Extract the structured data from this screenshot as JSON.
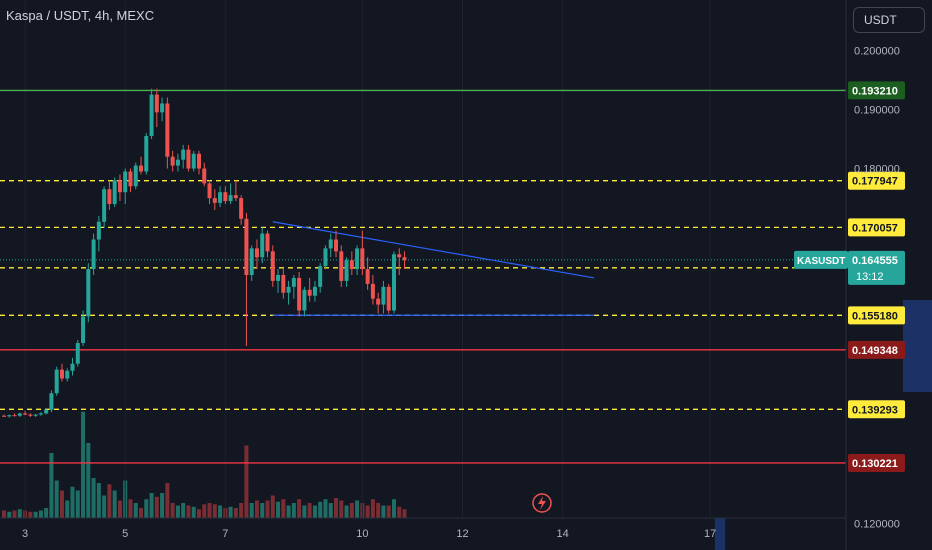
{
  "title": "Kaspa / USDT, 4h, MEXC",
  "currency_button": "USDT",
  "symbol_label": "KASUSDT",
  "current_price": "0.164555",
  "countdown": "13:12",
  "colors": {
    "background": "#131722",
    "up": "#26a69a",
    "down": "#ef5350",
    "green_line": "#4caf50",
    "red_line": "#f23645",
    "yellow": "#ffeb3b",
    "blue_line": "#2962ff"
  },
  "chart_data": {
    "type": "candlestick",
    "ylim": [
      0.1155,
      0.2085
    ],
    "y_ticks": [
      "0.200000",
      "0.190000",
      "0.180000",
      "0.120000"
    ],
    "x_ticks": [
      {
        "label": "3",
        "index": 4
      },
      {
        "label": "5",
        "index": 23
      },
      {
        "label": "7",
        "index": 42
      },
      {
        "label": "10",
        "index": 68
      },
      {
        "label": "12",
        "index": 87
      },
      {
        "label": "14",
        "index": 106
      },
      {
        "label": "17",
        "index": 134
      }
    ],
    "levels": [
      {
        "value": 0.19321,
        "label": "0.193210",
        "style": "green-solid"
      },
      {
        "value": 0.177947,
        "label": "0.177947",
        "style": "yellow-dashed"
      },
      {
        "value": 0.170057,
        "label": "0.170057",
        "style": "yellow-dashed"
      },
      {
        "value": 0.163219,
        "label": "0.163219",
        "style": "yellow-dashed"
      },
      {
        "value": 0.15518,
        "label": "0.155180",
        "style": "yellow-dashed"
      },
      {
        "value": 0.149348,
        "label": "0.149348",
        "style": "red-solid"
      },
      {
        "value": 0.139293,
        "label": "0.139293",
        "style": "yellow-dashed"
      },
      {
        "value": 0.130221,
        "label": "0.130221",
        "style": "red-solid"
      }
    ],
    "trendlines": [
      {
        "from": [
          51,
          0.171
        ],
        "to": [
          112,
          0.1615
        ]
      },
      {
        "from": [
          51,
          0.1552
        ],
        "to": [
          112,
          0.1552
        ]
      }
    ],
    "candles": [
      [
        0.1382,
        0.1384,
        0.138,
        0.1381,
        6
      ],
      [
        0.1381,
        0.1384,
        0.1379,
        0.1383,
        5
      ],
      [
        0.1383,
        0.1386,
        0.1381,
        0.1382,
        6
      ],
      [
        0.1382,
        0.1387,
        0.138,
        0.1386,
        7
      ],
      [
        0.1386,
        0.139,
        0.1383,
        0.1384,
        6
      ],
      [
        0.1384,
        0.1386,
        0.138,
        0.1382,
        5
      ],
      [
        0.1382,
        0.1385,
        0.138,
        0.1384,
        5
      ],
      [
        0.1384,
        0.1388,
        0.1382,
        0.1386,
        6
      ],
      [
        0.1386,
        0.1393,
        0.1384,
        0.1392,
        8
      ],
      [
        0.1392,
        0.1425,
        0.1388,
        0.142,
        52
      ],
      [
        0.142,
        0.1465,
        0.1416,
        0.146,
        30
      ],
      [
        0.146,
        0.147,
        0.144,
        0.1445,
        22
      ],
      [
        0.1445,
        0.1462,
        0.144,
        0.1458,
        14
      ],
      [
        0.1458,
        0.148,
        0.145,
        0.147,
        25
      ],
      [
        0.147,
        0.151,
        0.1465,
        0.1505,
        22
      ],
      [
        0.1505,
        0.156,
        0.15,
        0.155,
        85
      ],
      [
        0.155,
        0.164,
        0.154,
        0.163,
        60
      ],
      [
        0.163,
        0.169,
        0.162,
        0.168,
        32
      ],
      [
        0.168,
        0.172,
        0.166,
        0.171,
        28
      ],
      [
        0.171,
        0.177,
        0.17,
        0.1765,
        18
      ],
      [
        0.1765,
        0.178,
        0.173,
        0.174,
        27
      ],
      [
        0.174,
        0.1785,
        0.1735,
        0.178,
        22
      ],
      [
        0.178,
        0.179,
        0.1745,
        0.176,
        14
      ],
      [
        0.176,
        0.18,
        0.174,
        0.1795,
        30
      ],
      [
        0.1795,
        0.18,
        0.176,
        0.177,
        15
      ],
      [
        0.177,
        0.181,
        0.1765,
        0.1805,
        12
      ],
      [
        0.1805,
        0.182,
        0.179,
        0.1795,
        8
      ],
      [
        0.1795,
        0.186,
        0.179,
        0.1855,
        15
      ],
      [
        0.1855,
        0.1935,
        0.185,
        0.1925,
        20
      ],
      [
        0.1925,
        0.1935,
        0.187,
        0.1895,
        17
      ],
      [
        0.1895,
        0.192,
        0.188,
        0.191,
        20
      ],
      [
        0.191,
        0.192,
        0.18,
        0.182,
        28
      ],
      [
        0.182,
        0.183,
        0.1795,
        0.1805,
        12
      ],
      [
        0.1805,
        0.1825,
        0.1795,
        0.1815,
        10
      ],
      [
        0.1815,
        0.184,
        0.18,
        0.1832,
        12
      ],
      [
        0.1832,
        0.184,
        0.1795,
        0.18,
        10
      ],
      [
        0.18,
        0.183,
        0.1795,
        0.1825,
        9
      ],
      [
        0.1825,
        0.183,
        0.179,
        0.18,
        7
      ],
      [
        0.18,
        0.181,
        0.177,
        0.1775,
        11
      ],
      [
        0.1775,
        0.178,
        0.174,
        0.175,
        12
      ],
      [
        0.175,
        0.1765,
        0.173,
        0.1742,
        11
      ],
      [
        0.1742,
        0.177,
        0.1735,
        0.176,
        10
      ],
      [
        0.176,
        0.177,
        0.174,
        0.1745,
        8
      ],
      [
        0.1745,
        0.1775,
        0.174,
        0.1755,
        9
      ],
      [
        0.1755,
        0.178,
        0.1745,
        0.175,
        8
      ],
      [
        0.175,
        0.1755,
        0.1705,
        0.1715,
        12
      ],
      [
        0.1715,
        0.1725,
        0.15,
        0.162,
        58
      ],
      [
        0.162,
        0.167,
        0.161,
        0.1665,
        12
      ],
      [
        0.1665,
        0.168,
        0.163,
        0.165,
        14
      ],
      [
        0.165,
        0.17,
        0.164,
        0.169,
        12
      ],
      [
        0.169,
        0.1695,
        0.165,
        0.166,
        14
      ],
      [
        0.166,
        0.167,
        0.16,
        0.161,
        18
      ],
      [
        0.161,
        0.163,
        0.159,
        0.162,
        13
      ],
      [
        0.162,
        0.163,
        0.158,
        0.159,
        15
      ],
      [
        0.159,
        0.161,
        0.157,
        0.16,
        10
      ],
      [
        0.16,
        0.162,
        0.158,
        0.1615,
        12
      ],
      [
        0.1615,
        0.1625,
        0.155,
        0.156,
        15
      ],
      [
        0.156,
        0.16,
        0.155,
        0.1595,
        10
      ],
      [
        0.1595,
        0.1615,
        0.1575,
        0.1585,
        12
      ],
      [
        0.1585,
        0.161,
        0.1575,
        0.16,
        10
      ],
      [
        0.16,
        0.164,
        0.159,
        0.1635,
        13
      ],
      [
        0.1635,
        0.167,
        0.163,
        0.1665,
        15
      ],
      [
        0.1665,
        0.169,
        0.165,
        0.168,
        12
      ],
      [
        0.168,
        0.1695,
        0.165,
        0.166,
        16
      ],
      [
        0.166,
        0.167,
        0.16,
        0.161,
        14
      ],
      [
        0.161,
        0.165,
        0.16,
        0.1645,
        10
      ],
      [
        0.1645,
        0.166,
        0.162,
        0.163,
        12
      ],
      [
        0.163,
        0.167,
        0.162,
        0.1665,
        14
      ],
      [
        0.1665,
        0.1695,
        0.162,
        0.163,
        12
      ],
      [
        0.163,
        0.165,
        0.1595,
        0.1605,
        10
      ],
      [
        0.1605,
        0.162,
        0.157,
        0.158,
        15
      ],
      [
        0.158,
        0.159,
        0.1555,
        0.157,
        12
      ],
      [
        0.157,
        0.161,
        0.1555,
        0.16,
        10
      ],
      [
        0.16,
        0.1605,
        0.1555,
        0.156,
        10
      ],
      [
        0.156,
        0.166,
        0.1555,
        0.1655,
        15
      ],
      [
        0.1655,
        0.1665,
        0.162,
        0.165,
        9
      ],
      [
        0.165,
        0.166,
        0.163,
        0.1645,
        7
      ]
    ]
  }
}
